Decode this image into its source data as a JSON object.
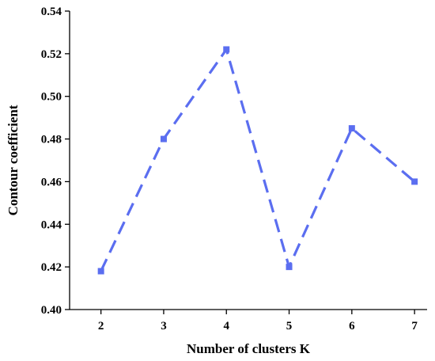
{
  "chart_data": {
    "type": "line",
    "title": "",
    "xlabel": "Number of clusters K",
    "ylabel": "Contour coefficient",
    "x": [
      2,
      3,
      4,
      5,
      6,
      7
    ],
    "xlim": [
      1.5,
      7.2
    ],
    "ylim": [
      0.4,
      0.54
    ],
    "yticks": [
      0.4,
      0.42,
      0.44,
      0.46,
      0.48,
      0.5,
      0.52,
      0.54
    ],
    "ytick_labels": [
      "0.40",
      "0.42",
      "0.44",
      "0.46",
      "0.48",
      "0.50",
      "0.52",
      "0.54"
    ],
    "xtick_labels": [
      "2",
      "3",
      "4",
      "5",
      "6",
      "7"
    ],
    "grid": false,
    "legend": "none",
    "series": [
      {
        "values": [
          0.418,
          0.48,
          0.522,
          0.42,
          0.485,
          0.46
        ],
        "color": "#5b6ef0",
        "line_style": "dashed",
        "marker": "square"
      }
    ]
  }
}
